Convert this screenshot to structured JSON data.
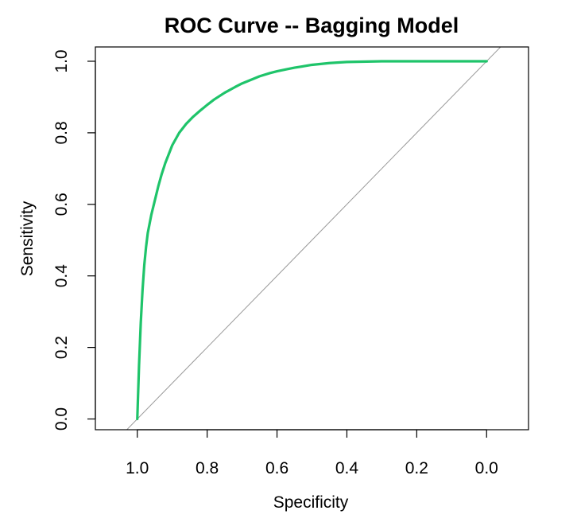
{
  "chart_data": {
    "type": "line",
    "title": "ROC Curve -- Bagging Model",
    "xlabel": "Specificity",
    "ylabel": "Sensitivity",
    "x_reversed": true,
    "xlim": [
      1.12,
      -0.12
    ],
    "ylim": [
      -0.03,
      1.04
    ],
    "x_ticks": [
      1.0,
      0.8,
      0.6,
      0.4,
      0.2,
      0.0
    ],
    "x_tick_labels": [
      "1.0",
      "0.8",
      "0.6",
      "0.4",
      "0.2",
      "0.0"
    ],
    "y_ticks": [
      0.0,
      0.2,
      0.4,
      0.6,
      0.8,
      1.0
    ],
    "y_tick_labels": [
      "0.0",
      "0.2",
      "0.4",
      "0.6",
      "0.8",
      "1.0"
    ],
    "grid": false,
    "series": [
      {
        "color": "#1fc46a",
        "x": [
          1.0,
          0.995,
          0.99,
          0.985,
          0.98,
          0.975,
          0.97,
          0.96,
          0.95,
          0.94,
          0.93,
          0.92,
          0.91,
          0.9,
          0.88,
          0.86,
          0.84,
          0.82,
          0.8,
          0.78,
          0.75,
          0.72,
          0.7,
          0.67,
          0.65,
          0.62,
          0.6,
          0.57,
          0.55,
          0.5,
          0.45,
          0.4,
          0.3,
          0.2,
          0.1,
          0.0
        ],
        "y": [
          0.0,
          0.15,
          0.27,
          0.36,
          0.43,
          0.48,
          0.52,
          0.57,
          0.61,
          0.65,
          0.685,
          0.715,
          0.74,
          0.765,
          0.8,
          0.825,
          0.845,
          0.862,
          0.878,
          0.893,
          0.912,
          0.928,
          0.938,
          0.95,
          0.958,
          0.967,
          0.972,
          0.978,
          0.982,
          0.99,
          0.995,
          0.998,
          1.0,
          1.0,
          1.0,
          1.0
        ]
      }
    ],
    "reference_line": {
      "from": [
        1.0,
        0.0
      ],
      "to": [
        0.0,
        1.0
      ],
      "color": "#999999"
    }
  }
}
